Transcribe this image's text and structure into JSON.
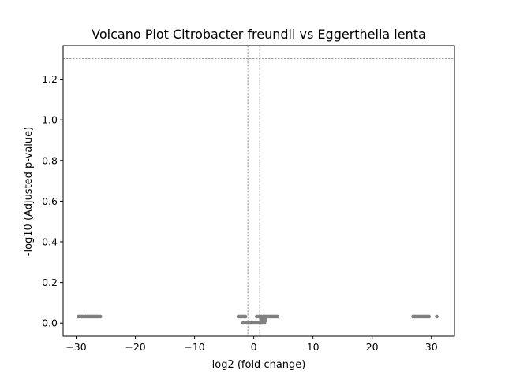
{
  "chart_data": {
    "type": "scatter",
    "title": "Volcano Plot Citrobacter freundii vs Eggerthella lenta",
    "xlabel": "log2 (fold change)",
    "ylabel": "-log10 (Adjusted p-value)",
    "xlim": [
      -32.2,
      33.9
    ],
    "ylim": [
      -0.065,
      1.365
    ],
    "xticks": [
      -30,
      -20,
      -10,
      0,
      10,
      20,
      30
    ],
    "xtick_labels": [
      "−30",
      "−20",
      "−10",
      "0",
      "10",
      "20",
      "30"
    ],
    "yticks": [
      0.0,
      0.2,
      0.4,
      0.6,
      0.8,
      1.0,
      1.2
    ],
    "ytick_labels": [
      "0.0",
      "0.2",
      "0.4",
      "0.6",
      "0.8",
      "1.0",
      "1.2"
    ],
    "grid": false,
    "legend": "none",
    "point_color": "#808080",
    "threshold_color": "#808080",
    "thresholds": {
      "x": [
        -1,
        1
      ],
      "y": 1.30103
    },
    "points": [
      {
        "x": -29.6,
        "y": 0.032
      },
      {
        "x": -29.3,
        "y": 0.032
      },
      {
        "x": -29.0,
        "y": 0.032
      },
      {
        "x": -28.7,
        "y": 0.032
      },
      {
        "x": -28.4,
        "y": 0.032
      },
      {
        "x": -28.1,
        "y": 0.032
      },
      {
        "x": -27.8,
        "y": 0.032
      },
      {
        "x": -27.5,
        "y": 0.032
      },
      {
        "x": -27.2,
        "y": 0.032
      },
      {
        "x": -26.9,
        "y": 0.032
      },
      {
        "x": -26.6,
        "y": 0.032
      },
      {
        "x": -26.3,
        "y": 0.032
      },
      {
        "x": -25.9,
        "y": 0.032
      },
      {
        "x": -2.6,
        "y": 0.032
      },
      {
        "x": -2.3,
        "y": 0.032
      },
      {
        "x": -2.0,
        "y": 0.032
      },
      {
        "x": -1.7,
        "y": 0.032
      },
      {
        "x": -1.4,
        "y": 0.032
      },
      {
        "x": -1.8,
        "y": 0.001
      },
      {
        "x": -1.5,
        "y": 0.001
      },
      {
        "x": -1.2,
        "y": 0.001
      },
      {
        "x": -0.9,
        "y": 0.001
      },
      {
        "x": -0.6,
        "y": 0.001
      },
      {
        "x": -0.3,
        "y": 0.001
      },
      {
        "x": 0.0,
        "y": 0.001
      },
      {
        "x": 0.3,
        "y": 0.001
      },
      {
        "x": 0.6,
        "y": 0.001
      },
      {
        "x": 0.9,
        "y": 0.001
      },
      {
        "x": 1.2,
        "y": 0.001
      },
      {
        "x": 1.5,
        "y": 0.001
      },
      {
        "x": 1.8,
        "y": 0.001
      },
      {
        "x": 1.4,
        "y": 0.012
      },
      {
        "x": 1.7,
        "y": 0.012
      },
      {
        "x": 2.0,
        "y": 0.012
      },
      {
        "x": 1.2,
        "y": 0.02
      },
      {
        "x": 1.6,
        "y": 0.02
      },
      {
        "x": 2.0,
        "y": 0.02
      },
      {
        "x": 0.5,
        "y": 0.032
      },
      {
        "x": 0.9,
        "y": 0.032
      },
      {
        "x": 1.3,
        "y": 0.032
      },
      {
        "x": 1.6,
        "y": 0.032
      },
      {
        "x": 1.9,
        "y": 0.032
      },
      {
        "x": 2.2,
        "y": 0.032
      },
      {
        "x": 2.5,
        "y": 0.032
      },
      {
        "x": 2.8,
        "y": 0.032
      },
      {
        "x": 3.1,
        "y": 0.032
      },
      {
        "x": 3.4,
        "y": 0.032
      },
      {
        "x": 3.7,
        "y": 0.032
      },
      {
        "x": 4.0,
        "y": 0.032
      },
      {
        "x": 26.9,
        "y": 0.032
      },
      {
        "x": 27.2,
        "y": 0.032
      },
      {
        "x": 27.5,
        "y": 0.032
      },
      {
        "x": 27.8,
        "y": 0.032
      },
      {
        "x": 28.1,
        "y": 0.032
      },
      {
        "x": 28.4,
        "y": 0.032
      },
      {
        "x": 28.7,
        "y": 0.032
      },
      {
        "x": 29.0,
        "y": 0.032
      },
      {
        "x": 29.3,
        "y": 0.032
      },
      {
        "x": 29.6,
        "y": 0.032
      },
      {
        "x": 30.9,
        "y": 0.032
      }
    ]
  }
}
